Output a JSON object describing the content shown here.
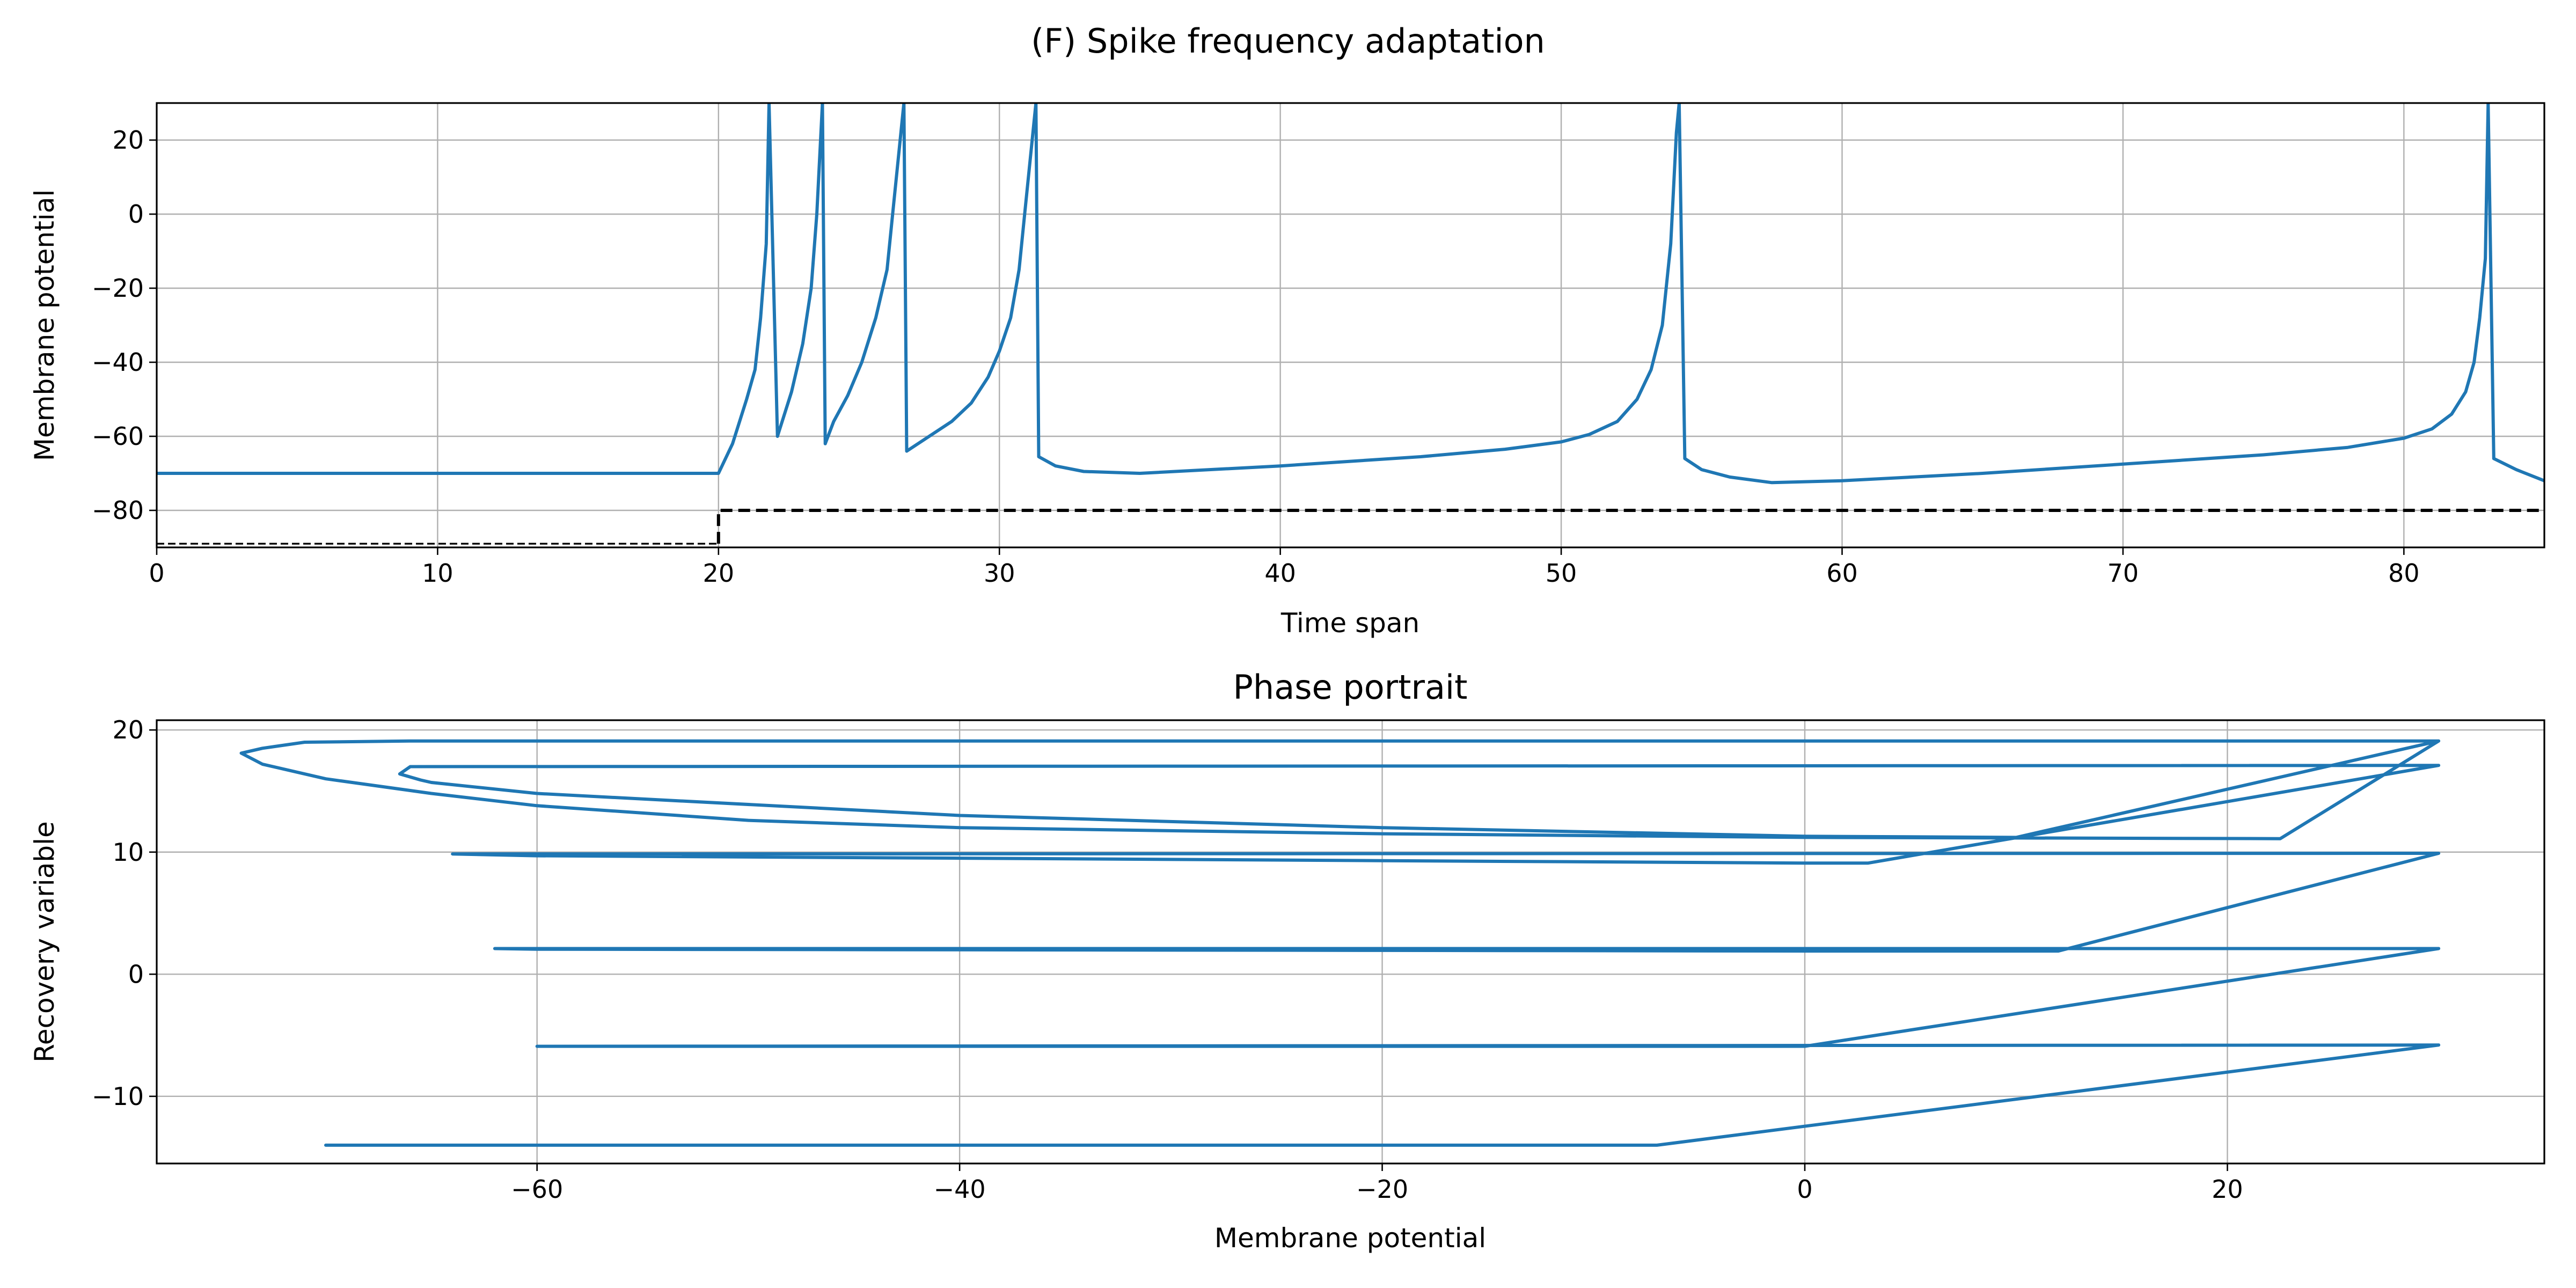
{
  "figure_title": "(F) Spike frequency adaptation",
  "colors": {
    "series": "#1f77b4",
    "stimulus": "#000000",
    "grid": "#b0b0b0"
  },
  "chart_data": [
    {
      "id": "time",
      "type": "line",
      "title": "",
      "xlabel": "Time span",
      "ylabel": "Membrane potential",
      "xlim": [
        0,
        85
      ],
      "ylim": [
        -90,
        30
      ],
      "xticks": [
        0,
        10,
        20,
        30,
        40,
        50,
        60,
        70,
        80
      ],
      "yticks": [
        -80,
        -60,
        -40,
        -20,
        0,
        20
      ],
      "grid": true,
      "series": [
        {
          "style": "solid",
          "color": "#1f77b4",
          "x": [
            0,
            20,
            20.5,
            21,
            21.3,
            21.5,
            21.7,
            21.8,
            22.1,
            22.6,
            23.0,
            23.3,
            23.5,
            23.7,
            23.8,
            24.1,
            24.6,
            25.1,
            25.6,
            26.0,
            26.2,
            26.4,
            26.6,
            26.7,
            27.5,
            28.3,
            29.0,
            29.6,
            30.0,
            30.4,
            30.7,
            30.9,
            31.1,
            31.3,
            31.4,
            32.0,
            33.0,
            35.0,
            40.0,
            45.0,
            48.0,
            50.0,
            51.0,
            52.0,
            52.7,
            53.2,
            53.6,
            53.9,
            54.1,
            54.2,
            54.4,
            55.0,
            56.0,
            57.5,
            60.0,
            65.0,
            70.0,
            75.0,
            78.0,
            80.0,
            81.0,
            81.7,
            82.2,
            82.5,
            82.7,
            82.9,
            83.0,
            83.2,
            84.0,
            85.0
          ],
          "y": [
            -70,
            -70,
            -62,
            -50,
            -42,
            -28,
            -8,
            30,
            -60,
            -48,
            -35,
            -20,
            0,
            30,
            -62,
            -56,
            -49,
            -40,
            -28,
            -15,
            0,
            15,
            30,
            -64,
            -60,
            -56,
            -51,
            -44,
            -37,
            -28,
            -15,
            0,
            15,
            30,
            -65.5,
            -68,
            -69.5,
            -70,
            -68,
            -65.5,
            -63.5,
            -61.5,
            -59.5,
            -56,
            -50,
            -42,
            -30,
            -8,
            22,
            30,
            -66,
            -69,
            -71,
            -72.5,
            -72,
            -70,
            -67.5,
            -65,
            -63,
            -60.5,
            -58,
            -54,
            -48,
            -40,
            -28,
            -12,
            30,
            -66,
            -69,
            -72
          ]
        },
        {
          "style": "dashed",
          "color": "#000000",
          "x": [
            0,
            20,
            20,
            85
          ],
          "y": [
            -89,
            -89,
            -80,
            -80
          ]
        }
      ]
    },
    {
      "id": "phase",
      "type": "line",
      "title": "Phase portrait",
      "xlabel": "Membrane potential",
      "ylabel": "Recovery variable",
      "xlim": [
        -78,
        35
      ],
      "ylim": [
        -15.5,
        20.8
      ],
      "xticks": [
        -60,
        -40,
        -20,
        0,
        20
      ],
      "yticks": [
        -10,
        0,
        10,
        20
      ],
      "grid": true,
      "series": [
        {
          "style": "solid",
          "color": "#1f77b4",
          "x": [
            -70,
            -7,
            30,
            -60,
            -58,
            -40,
            -20,
            -5,
            0,
            30,
            -62,
            -60,
            -40,
            -20,
            0,
            12,
            30,
            -64,
            -60,
            -40,
            -20,
            0,
            3,
            30,
            -66,
            -66.5,
            -65.5,
            -65,
            -60,
            -40,
            -20,
            0,
            10,
            30,
            -66,
            -71,
            -73,
            -74,
            -73,
            -70,
            -65,
            -60,
            -50,
            -40,
            -20,
            0,
            22.5,
            30
          ],
          "y": [
            -14,
            -14,
            -5.8,
            -5.9,
            -5.9,
            -5.9,
            -5.9,
            -5.9,
            -5.9,
            2.1,
            2.1,
            2.05,
            2,
            1.95,
            1.9,
            1.9,
            9.9,
            9.85,
            9.7,
            9.5,
            9.3,
            9.1,
            9.1,
            17.1,
            17.0,
            16.4,
            15.9,
            15.7,
            14.8,
            13.0,
            12.0,
            11.3,
            11.2,
            19.1,
            19.1,
            19.0,
            18.5,
            18.1,
            17.2,
            16.0,
            14.8,
            13.8,
            12.6,
            12.0,
            11.5,
            11.2,
            11.1,
            19.1
          ]
        }
      ]
    }
  ]
}
